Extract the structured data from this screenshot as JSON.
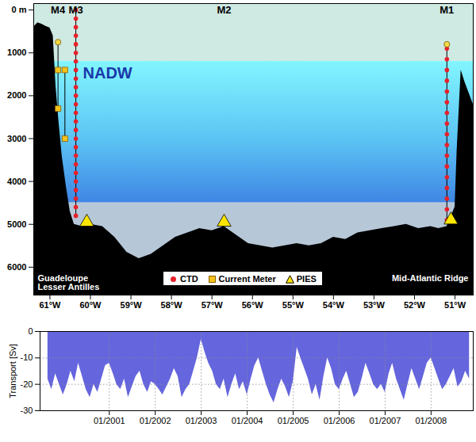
{
  "chart_data": [
    {
      "type": "section",
      "xlim": [
        -61.4,
        -50.55
      ],
      "ylim": [
        -150,
        6650
      ],
      "xticks": [
        {
          "value": -61,
          "label": "61°W"
        },
        {
          "value": -60,
          "label": "60°W"
        },
        {
          "value": -59,
          "label": "59°W"
        },
        {
          "value": -58,
          "label": "58°W"
        },
        {
          "value": -57,
          "label": "57°W"
        },
        {
          "value": -56,
          "label": "56°W"
        },
        {
          "value": -55,
          "label": "55°W"
        },
        {
          "value": -54,
          "label": "54°W"
        },
        {
          "value": -53,
          "label": "53°W"
        },
        {
          "value": -52,
          "label": "52°W"
        },
        {
          "value": -51,
          "label": "51°W"
        }
      ],
      "yticks": [
        {
          "value": 0,
          "label": "0 m"
        },
        1000,
        2000,
        3000,
        4000,
        5000,
        6000
      ],
      "bathymetry": {
        "lon": [
          -61.4,
          -61.3,
          -61.2,
          -61.1,
          -61.0,
          -60.92,
          -60.85,
          -60.78,
          -60.7,
          -60.6,
          -60.5,
          -60.4,
          -60.2,
          -60.0,
          -59.7,
          -59.4,
          -59.1,
          -58.8,
          -58.5,
          -58.2,
          -57.9,
          -57.6,
          -57.3,
          -57.0,
          -56.7,
          -56.4,
          -56.1,
          -55.8,
          -55.5,
          -55.2,
          -54.9,
          -54.6,
          -54.3,
          -54.0,
          -53.7,
          -53.4,
          -53.1,
          -52.8,
          -52.5,
          -52.2,
          -51.9,
          -51.6,
          -51.4,
          -51.2,
          -51.0,
          -50.95,
          -50.85,
          -50.75,
          -50.55
        ],
        "depth": [
          400,
          300,
          330,
          380,
          420,
          600,
          1800,
          2600,
          3400,
          4100,
          4700,
          5000,
          5050,
          5000,
          5050,
          5300,
          5650,
          5800,
          5700,
          5500,
          5300,
          5200,
          5100,
          5150,
          5050,
          5250,
          5450,
          5500,
          5550,
          5500,
          5450,
          5500,
          5450,
          5300,
          5350,
          5200,
          5150,
          5100,
          5050,
          5000,
          5100,
          5050,
          5100,
          5050,
          4600,
          3300,
          1400,
          1700,
          2200
        ]
      },
      "nadw": {
        "label": "NADW",
        "top": 1200,
        "bottom": 4500
      },
      "moorings": [
        {
          "name": "M4",
          "lon": -60.8
        },
        {
          "name": "M3",
          "lon": -60.36
        },
        {
          "name": "M2",
          "lon": -56.7
        },
        {
          "name": "M1",
          "lon": -51.2
        }
      ],
      "floats": {
        "x": [
          -60.8,
          -51.2
        ],
        "values": [
          750,
          800
        ],
        "color": "#f2d94a"
      },
      "series": [
        {
          "name": "CTD",
          "marker": "circle",
          "color": "#e8202a",
          "x": [
            -60.36,
            -60.36,
            -60.36,
            -60.36,
            -60.36,
            -60.36,
            -60.36,
            -60.36,
            -60.36,
            -60.36,
            -60.36,
            -60.36,
            -60.36,
            -60.36,
            -60.36,
            -60.36,
            -60.36,
            -60.36,
            -60.36,
            -60.36,
            -60.36,
            -60.36,
            -60.36,
            -60.36,
            -60.36,
            -51.2,
            -51.2,
            -51.2,
            -51.2,
            -51.2,
            -51.2,
            -51.2,
            -51.2,
            -51.2,
            -51.2,
            -51.2,
            -51.2,
            -51.2,
            -51.2,
            -51.2,
            -51.2,
            -51.2
          ],
          "values": [
            0,
            200,
            400,
            600,
            800,
            1000,
            1200,
            1400,
            1600,
            1800,
            2000,
            2200,
            2400,
            2600,
            2800,
            3000,
            3200,
            3400,
            3600,
            3800,
            4000,
            4200,
            4400,
            4600,
            4800,
            900,
            1150,
            1400,
            1650,
            1900,
            2150,
            2400,
            2650,
            2900,
            3150,
            3400,
            3650,
            3900,
            4150,
            4400,
            4650,
            4900
          ]
        },
        {
          "name": "Current Meter",
          "marker": "square",
          "color": "#f5c21b",
          "x": [
            -60.8,
            -60.8,
            -60.63,
            -60.63
          ],
          "values": [
            1400,
            2300,
            1400,
            3000
          ]
        },
        {
          "name": "PIES",
          "marker": "triangle",
          "color": "#ffe600",
          "x": [
            -60.09,
            -56.7,
            -51.1
          ],
          "values": [
            4950,
            4950,
            4900
          ]
        }
      ],
      "legend": "bottom",
      "annotations": [
        "Guadeloupe\nLesser Antilles",
        "Mid-Atlantic Ridge"
      ]
    },
    {
      "type": "area",
      "ylabel": "Transport [Sv]",
      "color": "#6565de",
      "xlim": [
        "1999-07",
        "2008-12"
      ],
      "ylim": [
        -30,
        0
      ],
      "yticks": [
        -30,
        -20,
        -10,
        0
      ],
      "xticks": [
        {
          "value": "2001-01",
          "label": "01/2001"
        },
        {
          "value": "2002-01",
          "label": "01/2002"
        },
        {
          "value": "2003-01",
          "label": "01/2003"
        },
        {
          "value": "2004-01",
          "label": "01/2004"
        },
        {
          "value": "2005-01",
          "label": "01/2005"
        },
        {
          "value": "2006-01",
          "label": "01/2006"
        },
        {
          "value": "2007-01",
          "label": "01/2007"
        },
        {
          "value": "2008-01",
          "label": "01/2008"
        }
      ],
      "grid": true,
      "x": [
        "1999-09",
        "1999-10",
        "1999-11",
        "1999-12",
        "2000-01",
        "2000-02",
        "2000-03",
        "2000-04",
        "2000-05",
        "2000-06",
        "2000-07",
        "2000-08",
        "2000-09",
        "2000-10",
        "2000-11",
        "2000-12",
        "2001-01",
        "2001-02",
        "2001-03",
        "2001-04",
        "2001-05",
        "2001-06",
        "2001-07",
        "2001-08",
        "2001-09",
        "2001-10",
        "2001-11",
        "2001-12",
        "2002-01",
        "2002-02",
        "2002-03",
        "2002-04",
        "2002-05",
        "2002-06",
        "2002-07",
        "2002-08",
        "2002-09",
        "2002-10",
        "2002-11",
        "2002-12",
        "2003-01",
        "2003-02",
        "2003-03",
        "2003-04",
        "2003-05",
        "2003-06",
        "2003-07",
        "2003-08",
        "2003-09",
        "2003-10",
        "2003-11",
        "2003-12",
        "2004-01",
        "2004-02",
        "2004-03",
        "2004-04",
        "2004-05",
        "2004-06",
        "2004-07",
        "2004-08",
        "2004-09",
        "2004-10",
        "2004-11",
        "2004-12",
        "2005-01",
        "2005-02",
        "2005-03",
        "2005-04",
        "2005-05",
        "2005-06",
        "2005-07",
        "2005-08",
        "2005-09",
        "2005-10",
        "2005-11",
        "2005-12",
        "2006-01",
        "2006-02",
        "2006-03",
        "2006-04",
        "2006-05",
        "2006-06",
        "2006-07",
        "2006-08",
        "2006-09",
        "2006-10",
        "2006-11",
        "2006-12",
        "2007-01",
        "2007-02",
        "2007-03",
        "2007-04",
        "2007-05",
        "2007-06",
        "2007-07",
        "2007-08",
        "2007-09",
        "2007-10",
        "2007-11",
        "2007-12",
        "2008-01",
        "2008-02",
        "2008-03",
        "2008-04",
        "2008-05",
        "2008-06",
        "2008-07",
        "2008-08",
        "2008-09",
        "2008-10",
        "2008-11"
      ],
      "values": [
        -18,
        -22,
        -16,
        -20,
        -24,
        -20,
        -15,
        -19,
        -12,
        -17,
        -22,
        -25,
        -20,
        -23,
        -18,
        -13,
        -12,
        -16,
        -20,
        -22,
        -18,
        -25,
        -21,
        -17,
        -15,
        -20,
        -23,
        -19,
        -20,
        -22,
        -24,
        -21,
        -18,
        -14,
        -17,
        -25,
        -22,
        -20,
        -15,
        -10,
        -3,
        -8,
        -12,
        -15,
        -20,
        -22,
        -18,
        -25,
        -20,
        -16,
        -22,
        -19,
        -24,
        -18,
        -13,
        -10,
        -15,
        -20,
        -24,
        -27,
        -22,
        -18,
        -21,
        -25,
        -19,
        -6,
        -10,
        -14,
        -18,
        -24,
        -20,
        -26,
        -17,
        -10,
        -14,
        -20,
        -22,
        -18,
        -15,
        -20,
        -25,
        -23,
        -18,
        -12,
        -16,
        -20,
        -22,
        -20,
        -23,
        -16,
        -12,
        -18,
        -22,
        -26,
        -20,
        -14,
        -18,
        -22,
        -17,
        -12,
        -10,
        -14,
        -18,
        -22,
        -20,
        -17,
        -14,
        -21,
        -19,
        -15,
        -18
      ]
    }
  ]
}
